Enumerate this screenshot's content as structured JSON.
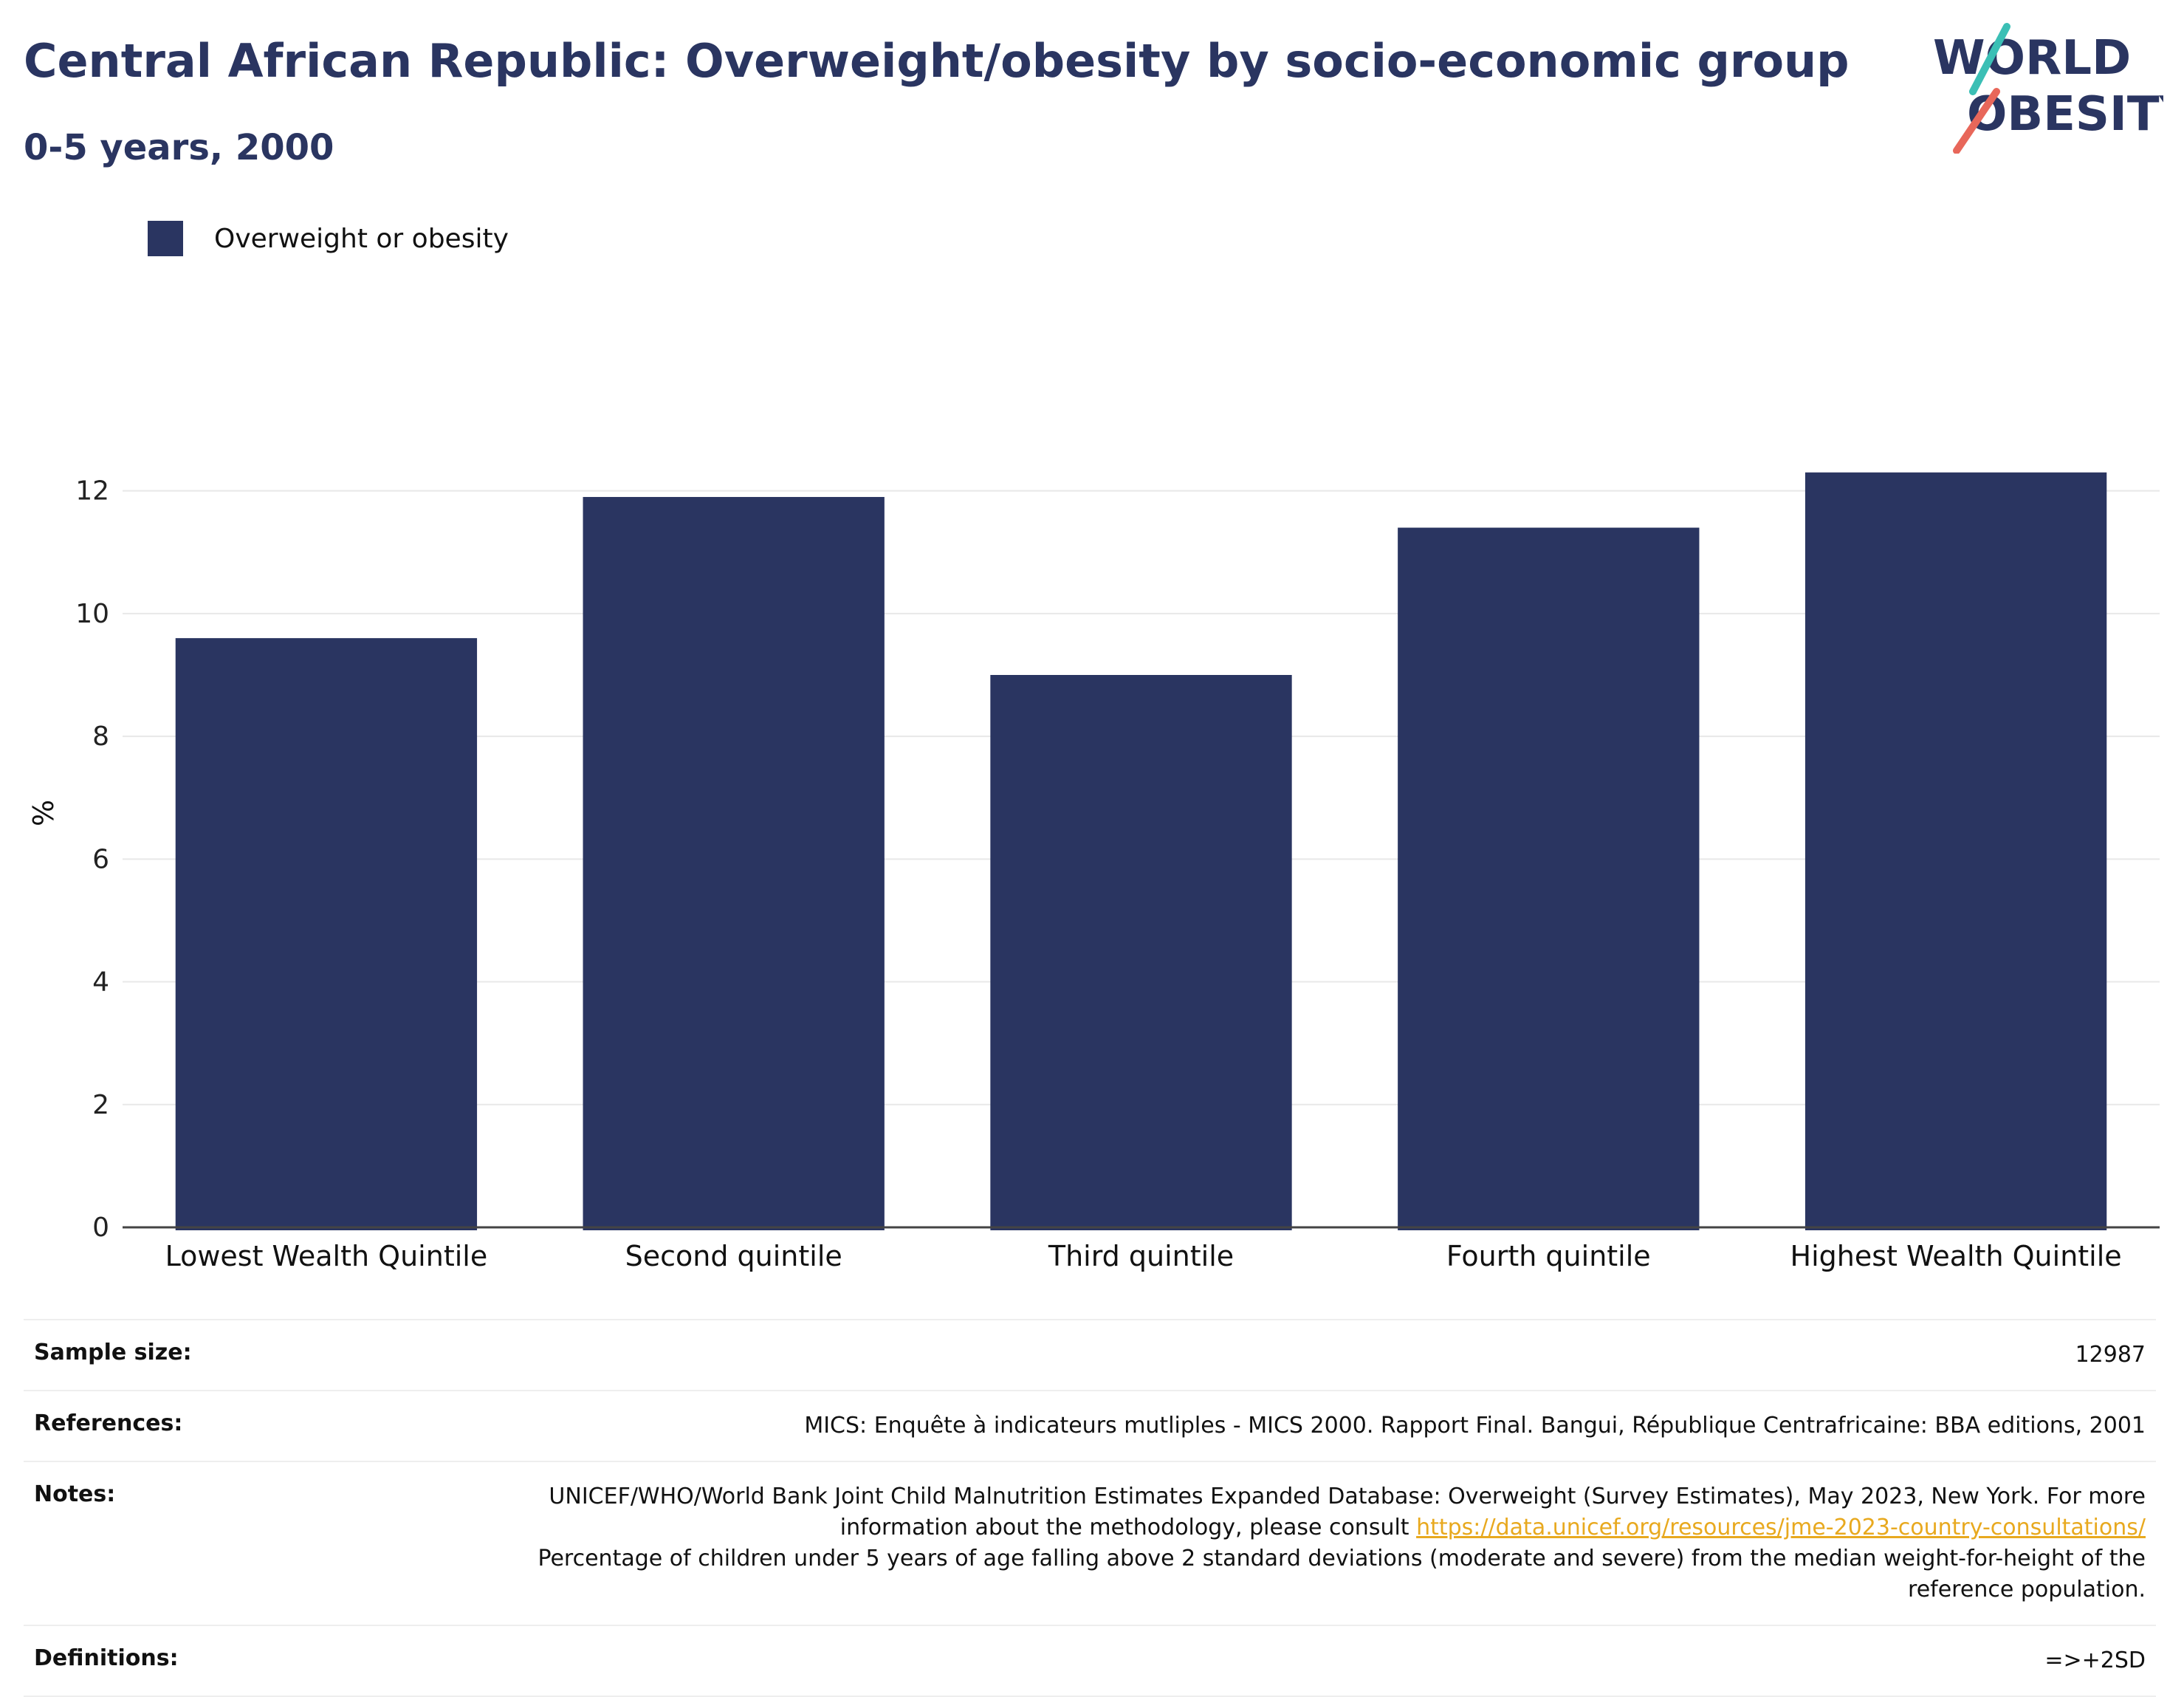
{
  "header": {
    "title": "Central African Republic: Overweight/obesity by socio-economic group",
    "subtitle": "0-5 years, 2000"
  },
  "logo": {
    "line1": "WORLD",
    "line2": "OBESITY",
    "accent_teal": "#3bbfb5",
    "accent_coral": "#e8675a"
  },
  "legend": {
    "label": "Overweight or obesity",
    "color": "#2a3561"
  },
  "chart_data": {
    "type": "bar",
    "categories": [
      "Lowest Wealth Quintile",
      "Second quintile",
      "Third quintile",
      "Fourth quintile",
      "Highest Wealth Quintile"
    ],
    "series": [
      {
        "name": "Overweight or obesity",
        "values": [
          9.6,
          11.9,
          9.0,
          11.4,
          12.3
        ],
        "color": "#2a3561"
      }
    ],
    "ylabel": "%",
    "xlabel": "",
    "ylim": [
      0,
      13.5
    ],
    "yticks": [
      0,
      2,
      4,
      6,
      8,
      10,
      12
    ],
    "grid": true,
    "legend_position": "top-left"
  },
  "info": {
    "sample_size_label": "Sample size:",
    "sample_size_value": "12987",
    "references_label": "References:",
    "references_value": "MICS: Enquête à indicateurs mutliples - MICS 2000. Rapport Final. Bangui, République Centrafricaine: BBA editions, 2001",
    "notes_label": "Notes:",
    "notes_text1": "UNICEF/WHO/World Bank Joint Child Malnutrition Estimates Expanded Database: Overweight (Survey Estimates), May 2023, New York. For more information about the methodology, please consult ",
    "notes_link": "https://data.unicef.org/resources/jme-2023-country-consultations/",
    "notes_text2": "Percentage of children under 5 years of age falling above 2 standard deviations (moderate and severe) from the median weight-for-height of the reference population.",
    "definitions_label": "Definitions:",
    "definitions_value": "=>+2SD"
  }
}
